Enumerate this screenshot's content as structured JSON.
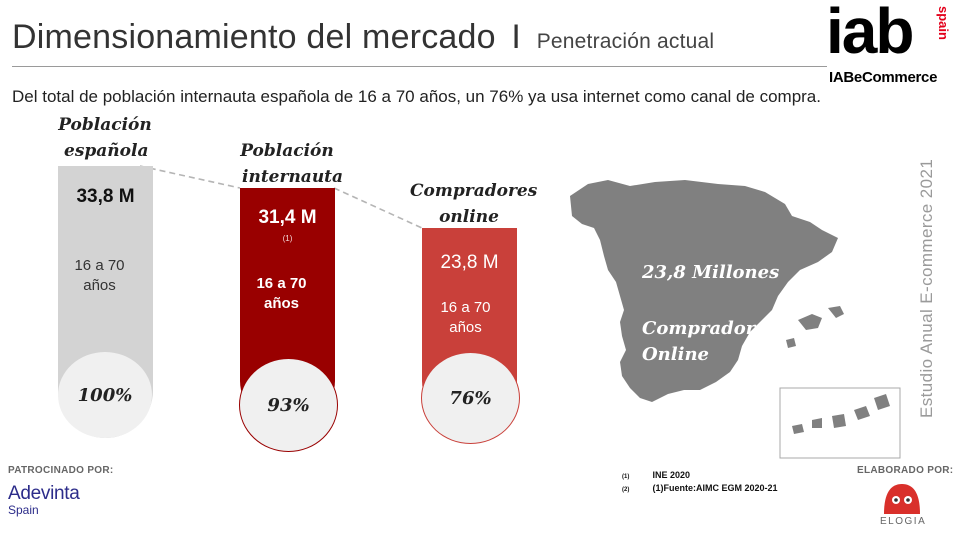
{
  "header": {
    "title": "Dimensionamiento del mercado",
    "separator": "I",
    "subtitle": "Penetración actual",
    "logo_text": "iab",
    "logo_country": "spain",
    "logo_caption": "IABeCommerce"
  },
  "intro": "Del total de población internauta española de 16 a 70 años, un 76% ya usa internet como canal de compra.",
  "columns": [
    {
      "title_line1": "Población",
      "title_line2": "española",
      "value": "33,8 M",
      "note": "",
      "age_line1": "16 a 70",
      "age_line2": "años",
      "percent": "100%",
      "color": "#d3d3d3"
    },
    {
      "title_line1": "Población",
      "title_line2": "internauta",
      "value": "31,4 M",
      "note": "(1)",
      "age_line1": "16 a 70",
      "age_line2": "años",
      "percent": "93%",
      "color": "#990000"
    },
    {
      "title_line1": "Compradores",
      "title_line2": "online",
      "value": "23,8 M",
      "note": "",
      "age_line1": "16 a 70",
      "age_line2": "años",
      "percent": "76%",
      "color": "#c9403a"
    }
  ],
  "map": {
    "line1": "23,8 Millones",
    "line2": "Compradores",
    "line3": "Online",
    "color": "#808080"
  },
  "side_text": "Estudio Anual E-commerce 2021",
  "footer": {
    "sponsor_label": "PATROCINADO POR:",
    "sponsor_name": "Adevinta",
    "sponsor_sub": "Spain",
    "notes": [
      {
        "mark": "(1)",
        "text": "INE 2020"
      },
      {
        "mark": "(2)",
        "text": "(1)Fuente:AIMC EGM 2020-21"
      }
    ],
    "made_label": "ELABORADO POR:",
    "made_name": "ELOGIA"
  }
}
